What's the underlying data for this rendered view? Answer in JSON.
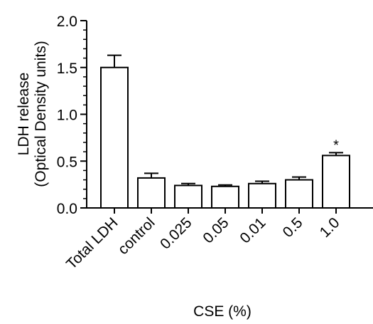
{
  "chart_data": {
    "type": "bar",
    "title": "",
    "xlabel": "CSE (%)",
    "ylabel_lines": [
      "LDH release",
      "(Optical Density units)"
    ],
    "categories": [
      "Total LDH",
      "control",
      "0.025",
      "0.05",
      "0.01",
      "0.5",
      "1.0"
    ],
    "values": [
      1.5,
      0.32,
      0.24,
      0.23,
      0.26,
      0.3,
      0.56
    ],
    "errors": [
      0.13,
      0.05,
      0.02,
      0.015,
      0.025,
      0.03,
      0.03
    ],
    "annotations": [
      "",
      "",
      "",
      "",
      "",
      "",
      "*"
    ],
    "ylim": [
      0,
      2.0
    ],
    "yticks": [
      "0.0",
      "0.5",
      "1.0",
      "1.5",
      "2.0"
    ],
    "bar_fill": "#ffffff",
    "bar_stroke": "#000000",
    "grid": false
  }
}
